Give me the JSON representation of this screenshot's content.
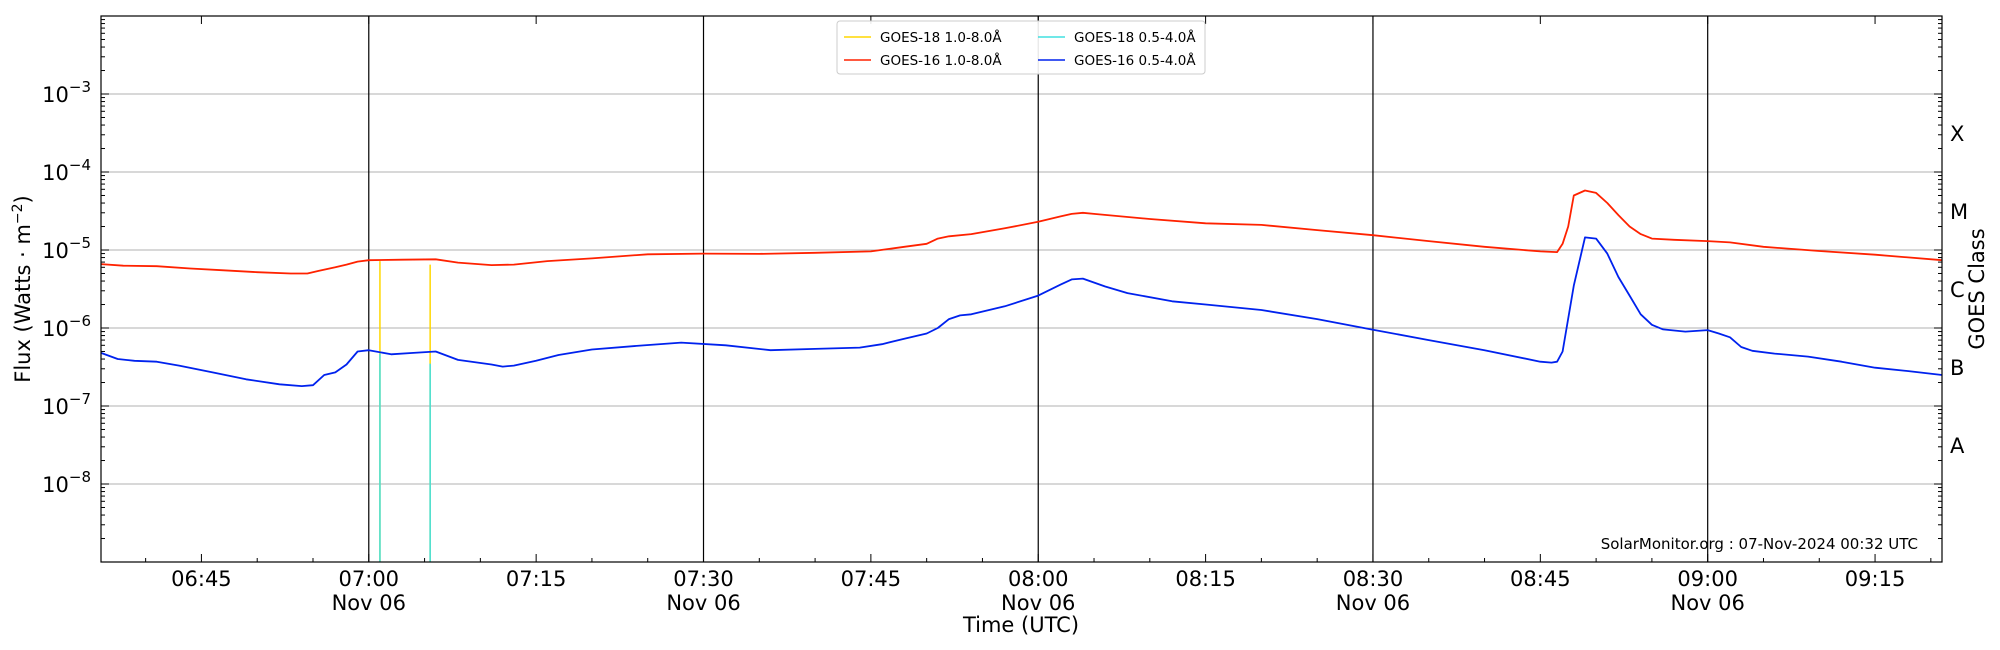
{
  "chart_data": {
    "type": "line",
    "y_scale": "log",
    "ylim": [
      1e-09,
      0.01
    ],
    "x_unit": "minutes of day (UTC), Nov 06",
    "xlim": [
      396,
      561
    ],
    "ylabel_text": "Flux (Watts · m",
    "ylabel_sup": "−2",
    "ylabel_close": ")",
    "xlabel": "Time (UTC)",
    "right_label": "GOES Class",
    "credit": "SolarMonitor.org : 07-Nov-2024 00:32 UTC",
    "y_ticks": [
      {
        "exp": -8,
        "base": "10",
        "sup": "−8"
      },
      {
        "exp": -7,
        "base": "10",
        "sup": "−7"
      },
      {
        "exp": -6,
        "base": "10",
        "sup": "−6"
      },
      {
        "exp": -5,
        "base": "10",
        "sup": "−5"
      },
      {
        "exp": -4,
        "base": "10",
        "sup": "−4"
      },
      {
        "exp": -3,
        "base": "10",
        "sup": "−3"
      }
    ],
    "x_ticks": [
      {
        "t": 405,
        "time": "06:45",
        "date": ""
      },
      {
        "t": 420,
        "time": "07:00",
        "date": "Nov 06"
      },
      {
        "t": 435,
        "time": "07:15",
        "date": ""
      },
      {
        "t": 450,
        "time": "07:30",
        "date": "Nov 06"
      },
      {
        "t": 465,
        "time": "07:45",
        "date": ""
      },
      {
        "t": 480,
        "time": "08:00",
        "date": "Nov 06"
      },
      {
        "t": 495,
        "time": "08:15",
        "date": ""
      },
      {
        "t": 510,
        "time": "08:30",
        "date": "Nov 06"
      },
      {
        "t": 525,
        "time": "08:45",
        "date": ""
      },
      {
        "t": 540,
        "time": "09:00",
        "date": "Nov 06"
      },
      {
        "t": 555,
        "time": "09:15",
        "date": ""
      }
    ],
    "vertical_lines": [
      420,
      450,
      480,
      510,
      540
    ],
    "class_labels": [
      {
        "label": "X",
        "flux_exp": -3.5
      },
      {
        "label": "M",
        "flux_exp": -4.5
      },
      {
        "label": "C",
        "flux_exp": -5.5
      },
      {
        "label": "B",
        "flux_exp": -6.5
      },
      {
        "label": "A",
        "flux_exp": -7.5
      }
    ],
    "legend": [
      {
        "name": "GOES-18 1.0-8.0Å",
        "color": "#ffd700"
      },
      {
        "name": "GOES-18 0.5-4.0Å",
        "color": "#40e0e0"
      },
      {
        "name": "GOES-16 1.0-8.0Å",
        "color": "#ff2200"
      },
      {
        "name": "GOES-16 0.5-4.0Å",
        "color": "#0022ee"
      }
    ],
    "series": [
      {
        "name": "GOES-18 1.0-8.0Å",
        "color": "#ffd700",
        "segments": [
          [
            [
              421.0,
              7.2e-06
            ],
            [
              421.0,
              1e-09
            ]
          ],
          [
            [
              425.5,
              6.5e-06
            ],
            [
              425.5,
              1e-09
            ]
          ]
        ]
      },
      {
        "name": "GOES-18 0.5-4.0Å",
        "color": "#40e0e0",
        "segments": [
          [
            [
              421.0,
              1e-09
            ],
            [
              421.0,
              4.7e-07
            ]
          ],
          [
            [
              425.5,
              1e-09
            ],
            [
              425.5,
              3.5e-07
            ]
          ]
        ]
      },
      {
        "name": "GOES-16 1.0-8.0Å",
        "color": "#ff2200",
        "points": [
          [
            396,
            6.6e-06
          ],
          [
            398,
            6.3e-06
          ],
          [
            401,
            6.2e-06
          ],
          [
            404,
            5.8e-06
          ],
          [
            407,
            5.5e-06
          ],
          [
            410,
            5.2e-06
          ],
          [
            413,
            5e-06
          ],
          [
            414.5,
            5e-06
          ],
          [
            415.5,
            5.4e-06
          ],
          [
            417,
            6e-06
          ],
          [
            418,
            6.5e-06
          ],
          [
            419,
            7.1e-06
          ],
          [
            420,
            7.4e-06
          ],
          [
            423,
            7.5e-06
          ],
          [
            426,
            7.6e-06
          ],
          [
            428,
            6.9e-06
          ],
          [
            431,
            6.4e-06
          ],
          [
            433,
            6.5e-06
          ],
          [
            436,
            7.2e-06
          ],
          [
            440,
            7.8e-06
          ],
          [
            445,
            8.8e-06
          ],
          [
            450,
            9e-06
          ],
          [
            455,
            8.9e-06
          ],
          [
            460,
            9.2e-06
          ],
          [
            465,
            9.6e-06
          ],
          [
            468,
            1.1e-05
          ],
          [
            470,
            1.2e-05
          ],
          [
            471,
            1.4e-05
          ],
          [
            472,
            1.5e-05
          ],
          [
            474,
            1.6e-05
          ],
          [
            477,
            1.9e-05
          ],
          [
            480,
            2.3e-05
          ],
          [
            482,
            2.7e-05
          ],
          [
            483,
            2.9e-05
          ],
          [
            484,
            3e-05
          ],
          [
            485,
            2.9e-05
          ],
          [
            490,
            2.5e-05
          ],
          [
            495,
            2.2e-05
          ],
          [
            500,
            2.1e-05
          ],
          [
            505,
            1.8e-05
          ],
          [
            510,
            1.55e-05
          ],
          [
            515,
            1.3e-05
          ],
          [
            520,
            1.1e-05
          ],
          [
            525,
            9.6e-06
          ],
          [
            526.5,
            9.4e-06
          ],
          [
            527,
            1.2e-05
          ],
          [
            527.5,
            2e-05
          ],
          [
            528,
            5e-05
          ],
          [
            529,
            5.8e-05
          ],
          [
            530,
            5.4e-05
          ],
          [
            531,
            4e-05
          ],
          [
            532,
            2.8e-05
          ],
          [
            533,
            2e-05
          ],
          [
            534,
            1.6e-05
          ],
          [
            535,
            1.4e-05
          ],
          [
            537,
            1.35e-05
          ],
          [
            540,
            1.3e-05
          ],
          [
            542,
            1.25e-05
          ],
          [
            545,
            1.1e-05
          ],
          [
            550,
            9.7e-06
          ],
          [
            555,
            8.7e-06
          ],
          [
            561,
            7.4e-06
          ]
        ]
      },
      {
        "name": "GOES-16 0.5-4.0Å",
        "color": "#0022ee",
        "points": [
          [
            396,
            4.8e-07
          ],
          [
            397.5,
            4e-07
          ],
          [
            399,
            3.8e-07
          ],
          [
            401,
            3.7e-07
          ],
          [
            403,
            3.3e-07
          ],
          [
            406,
            2.7e-07
          ],
          [
            409,
            2.2e-07
          ],
          [
            412,
            1.9e-07
          ],
          [
            414,
            1.8e-07
          ],
          [
            415,
            1.85e-07
          ],
          [
            416,
            2.5e-07
          ],
          [
            417,
            2.7e-07
          ],
          [
            418,
            3.4e-07
          ],
          [
            419,
            5e-07
          ],
          [
            420,
            5.2e-07
          ],
          [
            422,
            4.6e-07
          ],
          [
            424,
            4.8e-07
          ],
          [
            426,
            5e-07
          ],
          [
            428,
            3.9e-07
          ],
          [
            431,
            3.4e-07
          ],
          [
            432,
            3.2e-07
          ],
          [
            433,
            3.3e-07
          ],
          [
            435,
            3.8e-07
          ],
          [
            437,
            4.5e-07
          ],
          [
            440,
            5.3e-07
          ],
          [
            444,
            5.9e-07
          ],
          [
            448,
            6.5e-07
          ],
          [
            452,
            6e-07
          ],
          [
            456,
            5.2e-07
          ],
          [
            460,
            5.4e-07
          ],
          [
            464,
            5.6e-07
          ],
          [
            466,
            6.2e-07
          ],
          [
            468,
            7.3e-07
          ],
          [
            470,
            8.5e-07
          ],
          [
            471,
            1e-06
          ],
          [
            472,
            1.3e-06
          ],
          [
            473,
            1.45e-06
          ],
          [
            474,
            1.5e-06
          ],
          [
            477,
            1.9e-06
          ],
          [
            480,
            2.6e-06
          ],
          [
            482,
            3.6e-06
          ],
          [
            483,
            4.2e-06
          ],
          [
            484,
            4.3e-06
          ],
          [
            486,
            3.4e-06
          ],
          [
            488,
            2.8e-06
          ],
          [
            492,
            2.2e-06
          ],
          [
            495,
            2e-06
          ],
          [
            500,
            1.7e-06
          ],
          [
            505,
            1.3e-06
          ],
          [
            510,
            9.5e-07
          ],
          [
            515,
            7e-07
          ],
          [
            520,
            5.2e-07
          ],
          [
            525,
            3.7e-07
          ],
          [
            526,
            3.6e-07
          ],
          [
            526.5,
            3.7e-07
          ],
          [
            527,
            5e-07
          ],
          [
            528,
            3.5e-06
          ],
          [
            529,
            1.45e-05
          ],
          [
            530,
            1.4e-05
          ],
          [
            531,
            9e-06
          ],
          [
            532,
            4.5e-06
          ],
          [
            533,
            2.6e-06
          ],
          [
            534,
            1.5e-06
          ],
          [
            535,
            1.1e-06
          ],
          [
            536,
            9.6e-07
          ],
          [
            538,
            9e-07
          ],
          [
            540,
            9.4e-07
          ],
          [
            541,
            8.5e-07
          ],
          [
            542,
            7.6e-07
          ],
          [
            543,
            5.7e-07
          ],
          [
            544,
            5.1e-07
          ],
          [
            546,
            4.7e-07
          ],
          [
            549,
            4.3e-07
          ],
          [
            552,
            3.7e-07
          ],
          [
            555,
            3.1e-07
          ],
          [
            558,
            2.8e-07
          ],
          [
            561,
            2.5e-07
          ]
        ]
      }
    ]
  }
}
